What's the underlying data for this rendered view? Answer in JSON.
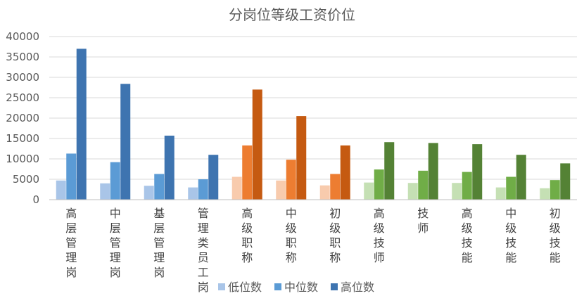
{
  "chart_data": {
    "type": "bar",
    "title": "分岗位等级工资价位",
    "xlabel": "",
    "ylabel": "",
    "ylim": [
      0,
      40000
    ],
    "yticks": [
      0,
      5000,
      10000,
      15000,
      20000,
      25000,
      30000,
      35000,
      40000
    ],
    "grid": true,
    "legend_position": "bottom",
    "categories": [
      "高层管理岗",
      "中层管理岗",
      "基层管理岗",
      "管理类员工岗",
      "高级职称",
      "中级职称",
      "初级职称",
      "高级技师",
      "技师",
      "高级技能",
      "中级技能",
      "初级技能"
    ],
    "category_groups": [
      "blue",
      "blue",
      "blue",
      "blue",
      "orange",
      "orange",
      "orange",
      "green",
      "green",
      "green",
      "green",
      "green"
    ],
    "series": [
      {
        "name": "低位数",
        "values": [
          4700,
          4000,
          3400,
          3000,
          5600,
          4700,
          3500,
          4200,
          4100,
          4100,
          3000,
          2800
        ]
      },
      {
        "name": "中位数",
        "values": [
          11300,
          9200,
          6300,
          5000,
          13300,
          9800,
          6300,
          7400,
          7100,
          6800,
          5600,
          4800
        ]
      },
      {
        "name": "高位数",
        "values": [
          37000,
          28400,
          15700,
          11000,
          27000,
          20500,
          13300,
          14100,
          13900,
          13600,
          11000,
          8900
        ]
      }
    ],
    "palettes": {
      "blue": [
        "#a9c5e8",
        "#5b9bd5",
        "#3e74b0"
      ],
      "orange": [
        "#f8cbad",
        "#ed7d31",
        "#c55a11"
      ],
      "green": [
        "#c5e0b4",
        "#70ad47",
        "#548235"
      ]
    },
    "legend_colors": [
      "#a9c5e8",
      "#5b9bd5",
      "#3e74b0"
    ],
    "gridline_color": "#d9d9d9",
    "axis_color": "#bfbfbf"
  }
}
